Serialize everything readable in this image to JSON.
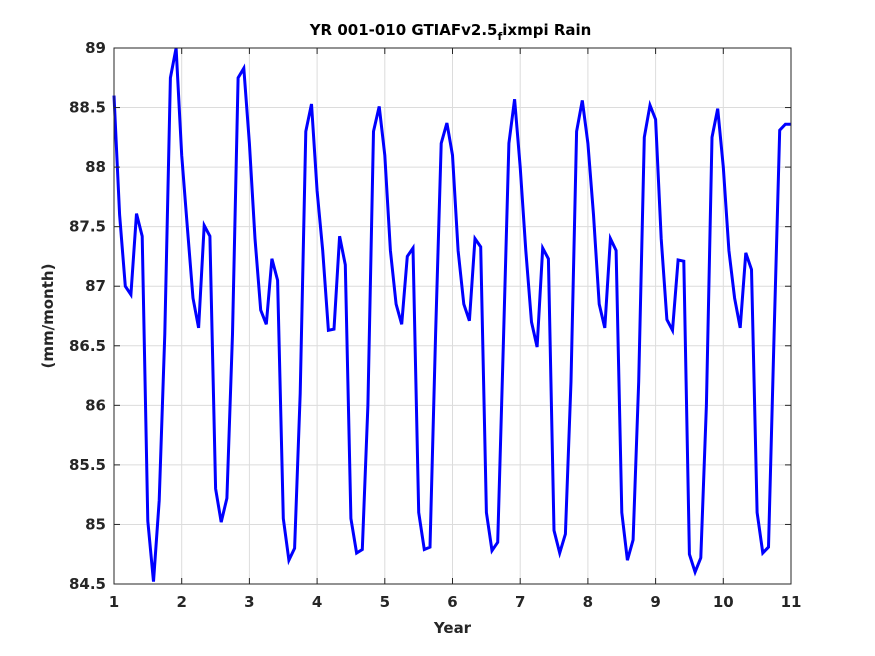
{
  "chart_data": {
    "type": "line",
    "title": {
      "main": "YR 001-010 GTIAFv2.5",
      "subscript": "f",
      "rest": "ixmpi Rain"
    },
    "xlabel": "Year",
    "ylabel": "(mm/month)",
    "xlim": [
      1,
      11
    ],
    "ylim": [
      84.5,
      89
    ],
    "xticks": [
      1,
      2,
      3,
      4,
      5,
      6,
      7,
      8,
      9,
      10,
      11
    ],
    "xtick_labels": [
      "1",
      "2",
      "3",
      "4",
      "5",
      "6",
      "7",
      "8",
      "9",
      "10",
      "11"
    ],
    "yticks": [
      84.5,
      85,
      85.5,
      86,
      86.5,
      87,
      87.5,
      88,
      88.5,
      89
    ],
    "ytick_labels": [
      "84.5",
      "85",
      "85.5",
      "86",
      "86.5",
      "87",
      "87.5",
      "88",
      "88.5",
      "89"
    ],
    "grid": true,
    "line_color": "#0000ff",
    "series": [
      {
        "x": [
          1.0,
          1.083,
          1.167,
          1.25,
          1.333,
          1.417,
          1.5,
          1.583,
          1.667,
          1.75,
          1.833,
          1.917,
          2.0,
          2.083,
          2.167,
          2.25,
          2.333,
          2.417,
          2.5,
          2.583,
          2.667,
          2.75,
          2.833,
          2.917,
          3.0,
          3.083,
          3.167,
          3.25,
          3.333,
          3.417,
          3.5,
          3.583,
          3.667,
          3.75,
          3.833,
          3.917,
          4.0,
          4.083,
          4.167,
          4.25,
          4.333,
          4.417,
          4.5,
          4.583,
          4.667,
          4.75,
          4.833,
          4.917,
          5.0,
          5.083,
          5.167,
          5.25,
          5.333,
          5.417,
          5.5,
          5.583,
          5.667,
          5.75,
          5.833,
          5.917,
          6.0,
          6.083,
          6.167,
          6.25,
          6.333,
          6.417,
          6.5,
          6.583,
          6.667,
          6.75,
          6.833,
          6.917,
          7.0,
          7.083,
          7.167,
          7.25,
          7.333,
          7.417,
          7.5,
          7.583,
          7.667,
          7.75,
          7.833,
          7.917,
          8.0,
          8.083,
          8.167,
          8.25,
          8.333,
          8.417,
          8.5,
          8.583,
          8.667,
          8.75,
          8.833,
          8.917,
          9.0,
          9.083,
          9.167,
          9.25,
          9.333,
          9.417,
          9.5,
          9.583,
          9.667,
          9.75,
          9.833,
          9.917,
          10.0,
          10.083,
          10.167,
          10.25,
          10.333,
          10.417,
          10.5,
          10.583,
          10.667,
          10.75,
          10.833,
          10.917,
          11.0
        ],
        "y": [
          88.6,
          87.6,
          87.0,
          86.93,
          87.61,
          87.42,
          85.03,
          84.52,
          85.2,
          86.6,
          88.75,
          89.0,
          88.1,
          87.5,
          86.9,
          86.65,
          87.51,
          87.42,
          85.3,
          85.02,
          85.22,
          86.6,
          88.75,
          88.83,
          88.2,
          87.4,
          86.8,
          86.68,
          87.23,
          87.05,
          85.05,
          84.7,
          84.8,
          86.1,
          88.3,
          88.53,
          87.8,
          87.3,
          86.63,
          86.64,
          87.42,
          87.18,
          85.05,
          84.76,
          84.79,
          86.0,
          88.3,
          88.51,
          88.1,
          87.3,
          86.85,
          86.68,
          87.25,
          87.32,
          85.1,
          84.79,
          84.81,
          86.6,
          88.2,
          88.37,
          88.1,
          87.3,
          86.85,
          86.71,
          87.4,
          87.33,
          85.1,
          84.78,
          84.85,
          86.5,
          88.2,
          88.57,
          88.0,
          87.3,
          86.7,
          86.49,
          87.32,
          87.23,
          84.95,
          84.76,
          84.92,
          86.2,
          88.3,
          88.56,
          88.2,
          87.6,
          86.85,
          86.65,
          87.4,
          87.3,
          85.1,
          84.7,
          84.87,
          86.2,
          88.25,
          88.52,
          88.4,
          87.4,
          86.72,
          86.63,
          87.22,
          87.21,
          84.75,
          84.6,
          84.72,
          86.0,
          88.25,
          88.49,
          88.0,
          87.3,
          86.9,
          86.65,
          87.28,
          87.14,
          85.1,
          84.76,
          84.81,
          86.6,
          88.31,
          88.36,
          88.36
        ]
      }
    ]
  }
}
